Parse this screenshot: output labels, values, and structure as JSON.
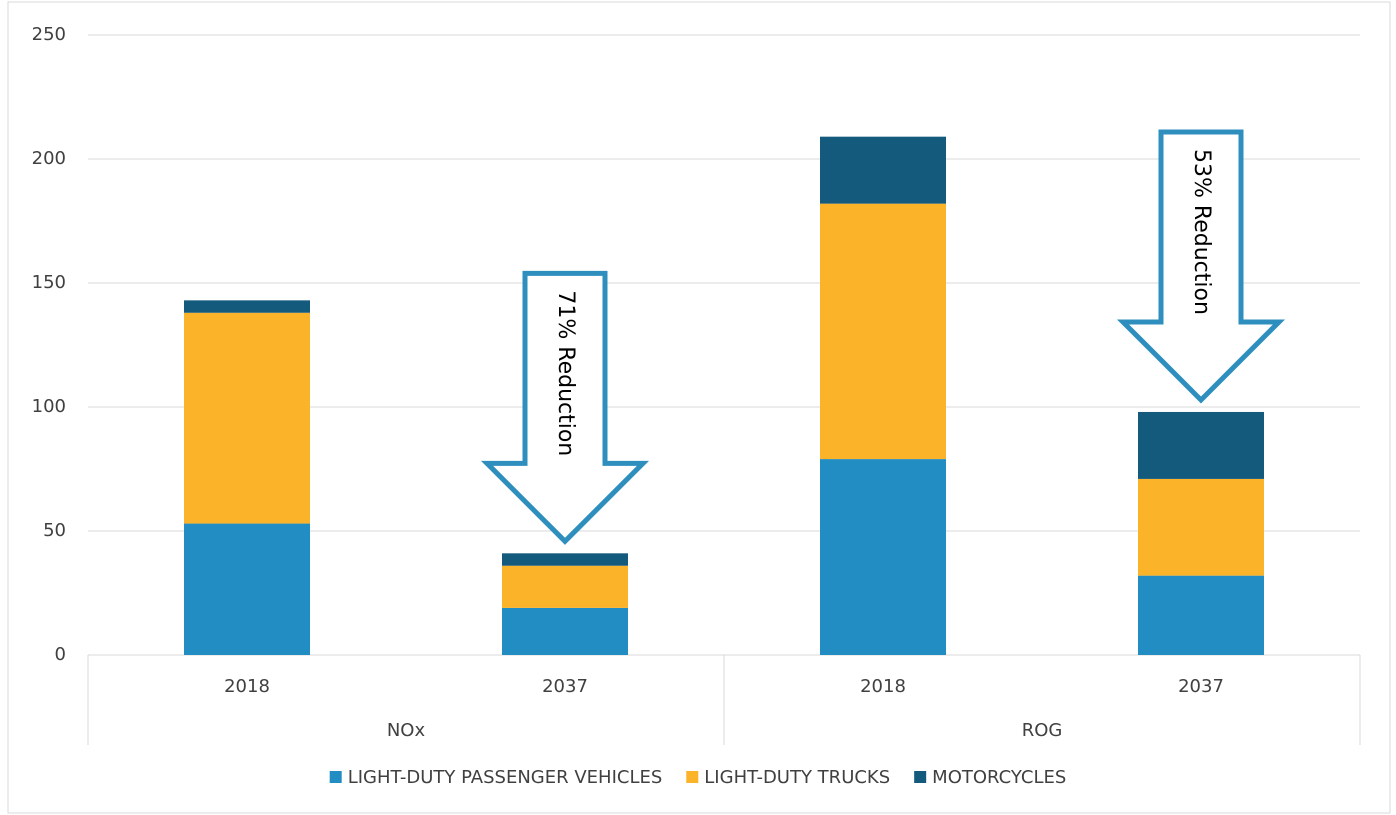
{
  "chart_data": {
    "type": "bar",
    "stacked": true,
    "categories": [
      "2018",
      "2037",
      "2018",
      "2037"
    ],
    "group_labels": [
      "NOx",
      "ROG"
    ],
    "series": [
      {
        "name": "LIGHT-DUTY PASSENGER VEHICLES",
        "color": "#218dc2",
        "values": [
          53,
          19,
          79,
          32
        ]
      },
      {
        "name": "LIGHT-DUTY TRUCKS",
        "color": "#fbb32a",
        "values": [
          85,
          17,
          103,
          39
        ]
      },
      {
        "name": "MOTORCYCLES",
        "color": "#135a7d",
        "values": [
          5,
          5,
          27,
          27
        ]
      }
    ],
    "ylim": [
      0,
      250
    ],
    "yticks": [
      0,
      50,
      100,
      150,
      200,
      250
    ],
    "grid": true,
    "annotations": [
      "71% Reduction",
      "53% Reduction"
    ],
    "legend": "bottom"
  }
}
